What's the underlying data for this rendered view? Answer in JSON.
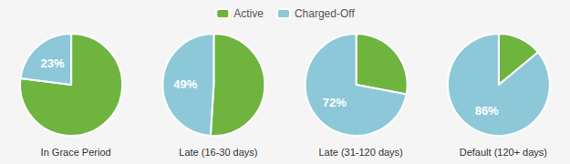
{
  "chart_data": [
    {
      "type": "pie",
      "title": "In Grace Period",
      "categories": [
        "Active",
        "Charged-Off"
      ],
      "values": [
        77,
        23
      ],
      "colors": [
        "#6EB43F",
        "#8DC8D8"
      ],
      "data_labels": true,
      "value_labels": [
        null,
        "23%"
      ],
      "legend": "top"
    },
    {
      "type": "pie",
      "title": "Late (16-30 days)",
      "categories": [
        "Active",
        "Charged-Off"
      ],
      "values": [
        51,
        49
      ],
      "colors": [
        "#6EB43F",
        "#8DC8D8"
      ],
      "data_labels": true,
      "value_labels": [
        null,
        "49%"
      ]
    },
    {
      "type": "pie",
      "title": "Late (31-120 days)",
      "categories": [
        "Active",
        "Charged-Off"
      ],
      "values": [
        28,
        72
      ],
      "colors": [
        "#6EB43F",
        "#8DC8D8"
      ],
      "data_labels": true,
      "value_labels": [
        null,
        "72%"
      ]
    },
    {
      "type": "pie",
      "title": "Default (120+ days)",
      "categories": [
        "Active",
        "Charged-Off"
      ],
      "values": [
        14,
        86
      ],
      "colors": [
        "#6EB43F",
        "#8DC8D8"
      ],
      "data_labels": true,
      "value_labels": [
        null,
        "86%"
      ]
    }
  ]
}
